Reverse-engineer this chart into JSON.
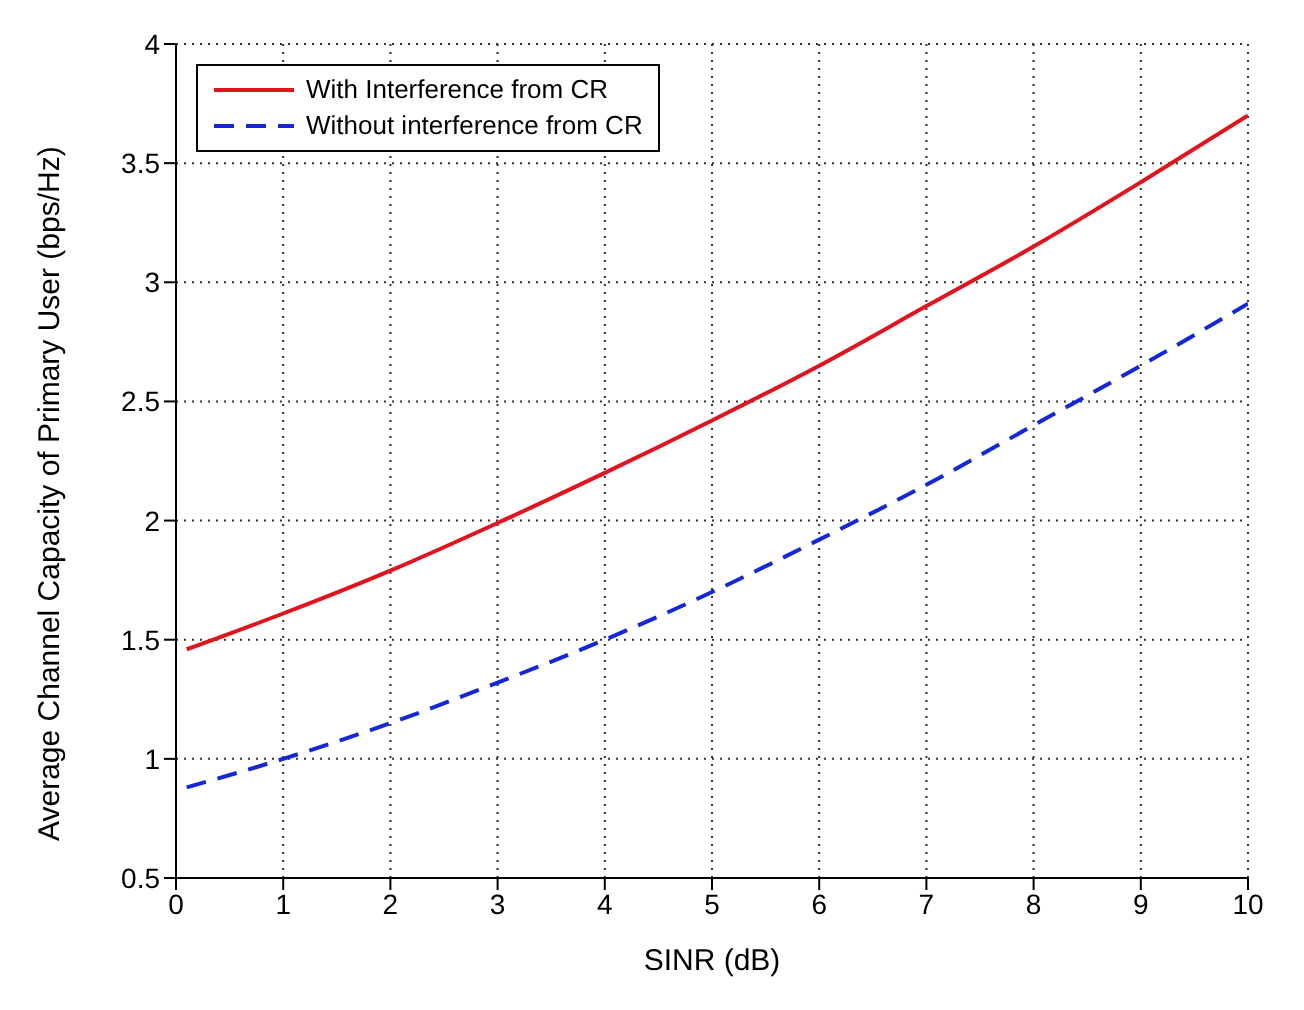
{
  "chart_data": {
    "type": "line",
    "xlabel": "SINR (dB)",
    "ylabel": "Average Channel Capacity of Primary User (bps/Hz)",
    "x": [
      0.1,
      1,
      2,
      3,
      4,
      5,
      6,
      7,
      8,
      9,
      10
    ],
    "series": [
      {
        "name": "With Interference from CR",
        "color": "#e0141e",
        "line_style": "solid",
        "values": [
          1.46,
          1.61,
          1.79,
          1.99,
          2.2,
          2.42,
          2.65,
          2.9,
          3.15,
          3.42,
          3.7
        ]
      },
      {
        "name": "Without interference from CR",
        "color": "#1428d8",
        "line_style": "dashed",
        "values": [
          0.88,
          1.0,
          1.15,
          1.32,
          1.5,
          1.7,
          1.92,
          2.15,
          2.4,
          2.65,
          2.91
        ]
      }
    ],
    "xlim": [
      0,
      10
    ],
    "xticks": [
      0,
      1,
      2,
      3,
      4,
      5,
      6,
      7,
      8,
      9,
      10
    ],
    "ylim": [
      0.5,
      4
    ],
    "yticks": [
      0.5,
      1,
      1.5,
      2,
      2.5,
      3,
      3.5,
      4
    ],
    "grid": true,
    "legend": "top left"
  }
}
